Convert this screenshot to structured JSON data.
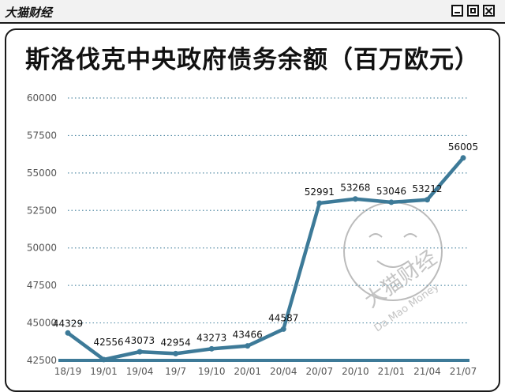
{
  "window": {
    "app_title": "大猫财经"
  },
  "watermark": {
    "cn": "大猫财经",
    "en": "Da Mao Money"
  },
  "chart_data": {
    "type": "line",
    "title": "斯洛伐克中央政府债务余额（百万欧元）",
    "categories": [
      "18/19",
      "19/01",
      "19/04",
      "19/7",
      "19/10",
      "20/01",
      "20/04",
      "20/07",
      "20/10",
      "21/01",
      "21/04",
      "21/07"
    ],
    "series": [
      {
        "name": "",
        "values": [
          44329,
          42556,
          43073,
          42954,
          43273,
          43466,
          44587,
          52991,
          53268,
          53046,
          53212,
          56005
        ]
      }
    ],
    "xlabel": "",
    "ylabel": "",
    "ylim": [
      42500,
      60000
    ],
    "yticks": [
      42500,
      45000,
      47500,
      50000,
      52500,
      55000,
      57500,
      60000
    ],
    "grid": true,
    "legend": "none",
    "colors": {
      "line": "#3d7a98",
      "grid": "#5a8fa8",
      "baseline": "#3d7a98"
    }
  }
}
